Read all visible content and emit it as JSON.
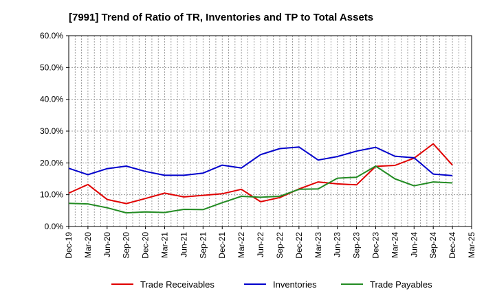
{
  "chart_data": {
    "type": "line",
    "title": "[7991]  Trend of Ratio of TR, Inventories and TP to Total Assets",
    "xlabel": "",
    "ylabel": "",
    "ylim": [
      0,
      60
    ],
    "y_ticks": [
      "0.0%",
      "10.0%",
      "20.0%",
      "30.0%",
      "40.0%",
      "50.0%",
      "60.0%"
    ],
    "x_tick_labels": [
      "Dec-19",
      "Mar-20",
      "Jun-20",
      "Sep-20",
      "Dec-20",
      "Mar-21",
      "Jun-21",
      "Sep-21",
      "Dec-21",
      "Mar-22",
      "Jun-22",
      "Sep-22",
      "Dec-22",
      "Mar-23",
      "Jun-23",
      "Sep-23",
      "Dec-23",
      "Mar-24",
      "Jun-24",
      "Sep-24",
      "Dec-24",
      "Mar-25"
    ],
    "x": [
      "Dec-19",
      "Mar-20",
      "Jun-20",
      "Sep-20",
      "Dec-20",
      "Mar-21",
      "Jun-21",
      "Sep-21",
      "Dec-21",
      "Mar-22",
      "Jun-22",
      "Sep-22",
      "Dec-22",
      "Mar-23",
      "Jun-23",
      "Sep-23",
      "Dec-23",
      "Mar-24",
      "Jun-24",
      "Sep-24",
      "Dec-24"
    ],
    "grid": true,
    "legend_position": "bottom",
    "series": [
      {
        "name": "Trade Receivables",
        "color": "#e00000",
        "values": [
          10.5,
          13.2,
          8.5,
          7.2,
          8.8,
          10.5,
          9.3,
          9.8,
          10.3,
          11.7,
          7.8,
          9.1,
          11.8,
          14.0,
          13.4,
          13.1,
          18.9,
          19.2,
          21.5,
          26.0,
          19.3
        ]
      },
      {
        "name": "Inventories",
        "color": "#0000cc",
        "values": [
          18.3,
          16.3,
          18.2,
          19.0,
          17.3,
          16.1,
          16.1,
          16.8,
          19.3,
          18.4,
          22.6,
          24.5,
          25.0,
          20.9,
          22.0,
          23.7,
          24.9,
          22.1,
          21.6,
          16.5,
          16.0
        ]
      },
      {
        "name": "Trade Payables",
        "color": "#228b22",
        "values": [
          7.3,
          7.1,
          5.9,
          4.3,
          4.6,
          4.4,
          5.4,
          5.3,
          7.5,
          9.5,
          9.2,
          9.5,
          11.7,
          11.8,
          15.2,
          15.5,
          19.0,
          15.0,
          12.8,
          14.0,
          13.7
        ]
      }
    ]
  }
}
